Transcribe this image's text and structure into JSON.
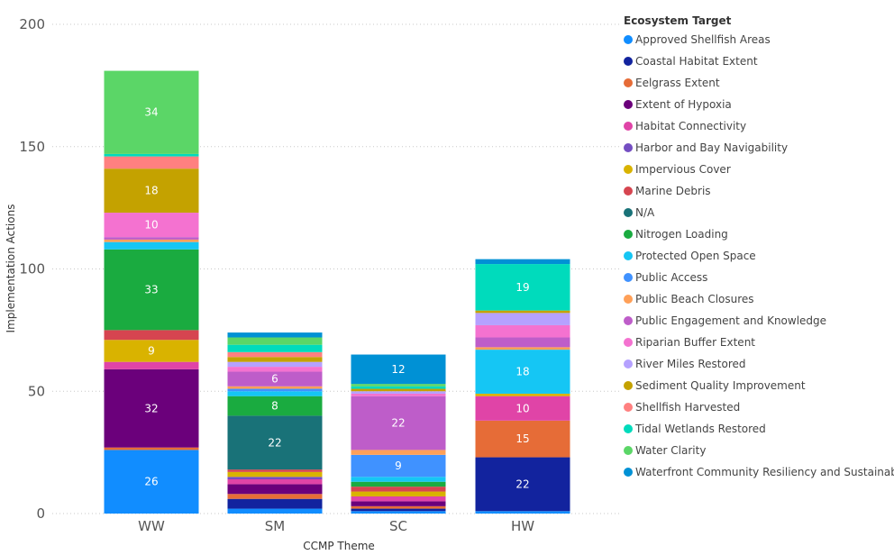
{
  "chart_data": {
    "type": "bar",
    "stacked": true,
    "xlabel": "CCMP Theme",
    "ylabel": "Implementation Actions",
    "ylim": [
      0,
      200
    ],
    "yticks": [
      0,
      50,
      100,
      150,
      200
    ],
    "grid": true,
    "legend_position": "right",
    "legend_title": "Ecosystem Target",
    "categories": [
      "WW",
      "SM",
      "SC",
      "HW"
    ],
    "series": [
      {
        "name": "Approved Shellfish Areas",
        "color": "#118DFF",
        "values": [
          26,
          2,
          1,
          1
        ]
      },
      {
        "name": "Coastal Habitat Extent",
        "color": "#12239E",
        "values": [
          0,
          4,
          1,
          22
        ]
      },
      {
        "name": "Eelgrass Extent",
        "color": "#E66C37",
        "values": [
          1,
          2,
          1,
          15
        ]
      },
      {
        "name": "Extent of Hypoxia",
        "color": "#6B007B",
        "values": [
          32,
          4,
          2,
          0
        ]
      },
      {
        "name": "Habitat Connectivity",
        "color": "#E044A7",
        "values": [
          3,
          2,
          2,
          10
        ]
      },
      {
        "name": "Harbor and Bay Navigability",
        "color": "#744EC2",
        "values": [
          0,
          1,
          0,
          0
        ]
      },
      {
        "name": "Impervious Cover",
        "color": "#D9B300",
        "values": [
          9,
          2,
          2,
          1
        ]
      },
      {
        "name": "Marine Debris",
        "color": "#D64550",
        "values": [
          4,
          1,
          2,
          0
        ]
      },
      {
        "name": "N/A",
        "color": "#197278",
        "values": [
          0,
          22,
          0,
          0
        ]
      },
      {
        "name": "Nitrogen Loading",
        "color": "#1AAB40",
        "values": [
          33,
          8,
          2,
          0
        ]
      },
      {
        "name": "Protected Open Space",
        "color": "#15C6F4",
        "values": [
          3,
          2,
          2,
          18
        ]
      },
      {
        "name": "Public Access",
        "color": "#4092FF",
        "values": [
          0,
          1,
          9,
          0
        ]
      },
      {
        "name": "Public Beach Closures",
        "color": "#FFA058",
        "values": [
          1,
          1,
          2,
          1
        ]
      },
      {
        "name": "Public Engagement and Knowledge",
        "color": "#BE5DC9",
        "values": [
          1,
          6,
          22,
          4
        ]
      },
      {
        "name": "Riparian Buffer Extent",
        "color": "#F472D0",
        "values": [
          10,
          2,
          1,
          5
        ]
      },
      {
        "name": "River Miles Restored",
        "color": "#B5A1FF",
        "values": [
          0,
          2,
          1,
          5
        ]
      },
      {
        "name": "Sediment Quality Improvement",
        "color": "#C4A200",
        "values": [
          18,
          2,
          1,
          1
        ]
      },
      {
        "name": "Shellfish Harvested",
        "color": "#FF8080",
        "values": [
          5,
          2,
          0,
          0
        ]
      },
      {
        "name": "Tidal Wetlands Restored",
        "color": "#00DBBC",
        "values": [
          1,
          3,
          1,
          19
        ]
      },
      {
        "name": "Water Clarity",
        "color": "#5BD667",
        "values": [
          34,
          3,
          1,
          0
        ]
      },
      {
        "name": "Waterfront Community Resiliency and Sustainability",
        "color": "#0091D5",
        "values": [
          0,
          2,
          12,
          2
        ]
      }
    ]
  }
}
